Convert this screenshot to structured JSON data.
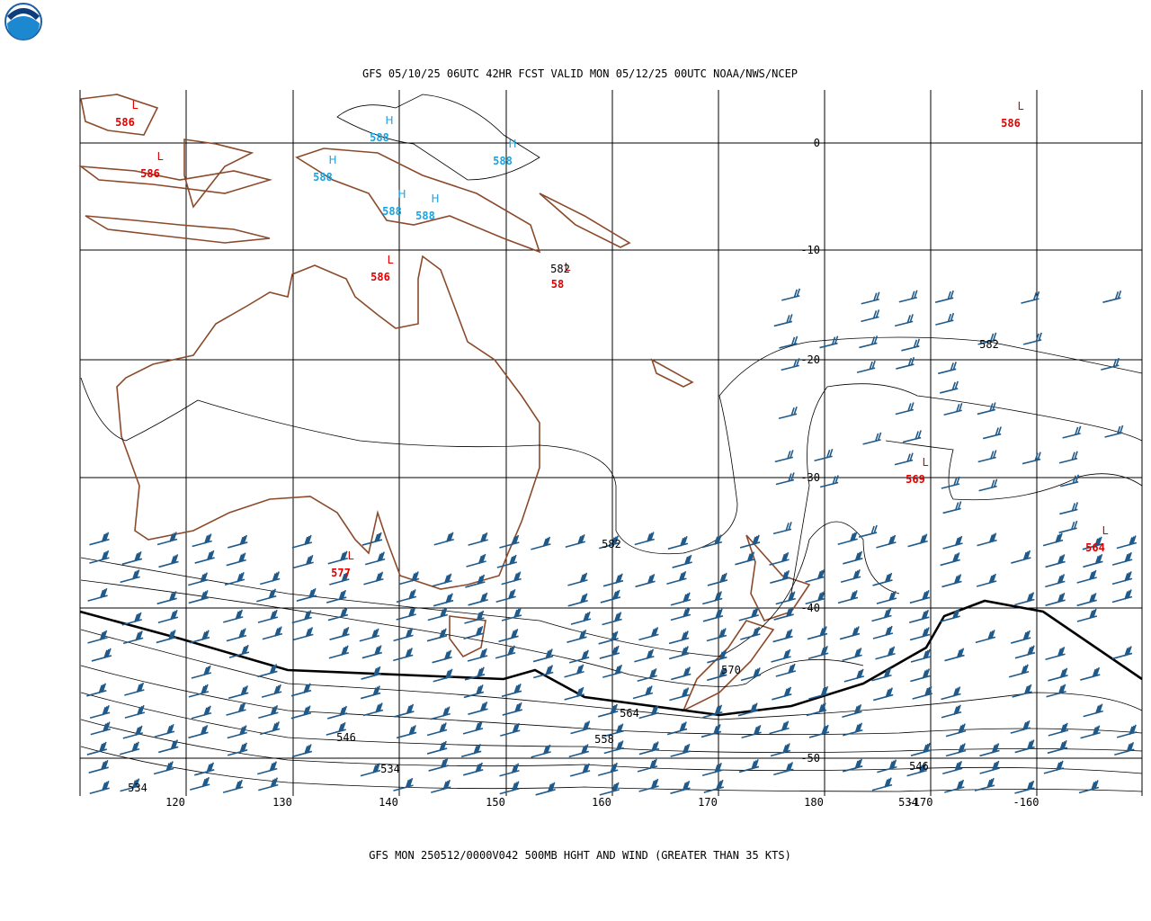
{
  "header": {
    "title": "GFS 05/10/25 06UTC 42HR FCST VALID MON 05/12/25 00UTC NOAA/NWS/NCEP"
  },
  "map": {
    "latitude_labels": [
      "0",
      "-10",
      "-20",
      "-30",
      "-40",
      "-50"
    ],
    "longitude_labels": [
      "120",
      "130",
      "140",
      "150",
      "160",
      "170",
      "180",
      "-170",
      "-160"
    ],
    "pressure_centers": [
      {
        "symbol": "L",
        "value": "586"
      },
      {
        "symbol": "L",
        "value": "586"
      },
      {
        "symbol": "H",
        "value": "588"
      },
      {
        "symbol": "H",
        "value": "588"
      },
      {
        "symbol": "H",
        "value": "588"
      },
      {
        "symbol": "H",
        "value": "588"
      },
      {
        "symbol": "H",
        "value": "588"
      },
      {
        "symbol": "L",
        "value": "586"
      },
      {
        "symbol": "L",
        "value": "58"
      },
      {
        "symbol": "L",
        "value": "586"
      },
      {
        "symbol": "L",
        "value": "569"
      },
      {
        "symbol": "L",
        "value": "564"
      },
      {
        "symbol": "L",
        "value": "577"
      }
    ],
    "contour_labels": [
      "582",
      "582",
      "582",
      "570",
      "564",
      "558",
      "546",
      "534",
      "534",
      "546",
      "534"
    ]
  },
  "footer": {
    "caption": "GFS MON 250512/0000V042 500MB HGHT AND WIND (GREATER THAN 35 KTS)"
  }
}
